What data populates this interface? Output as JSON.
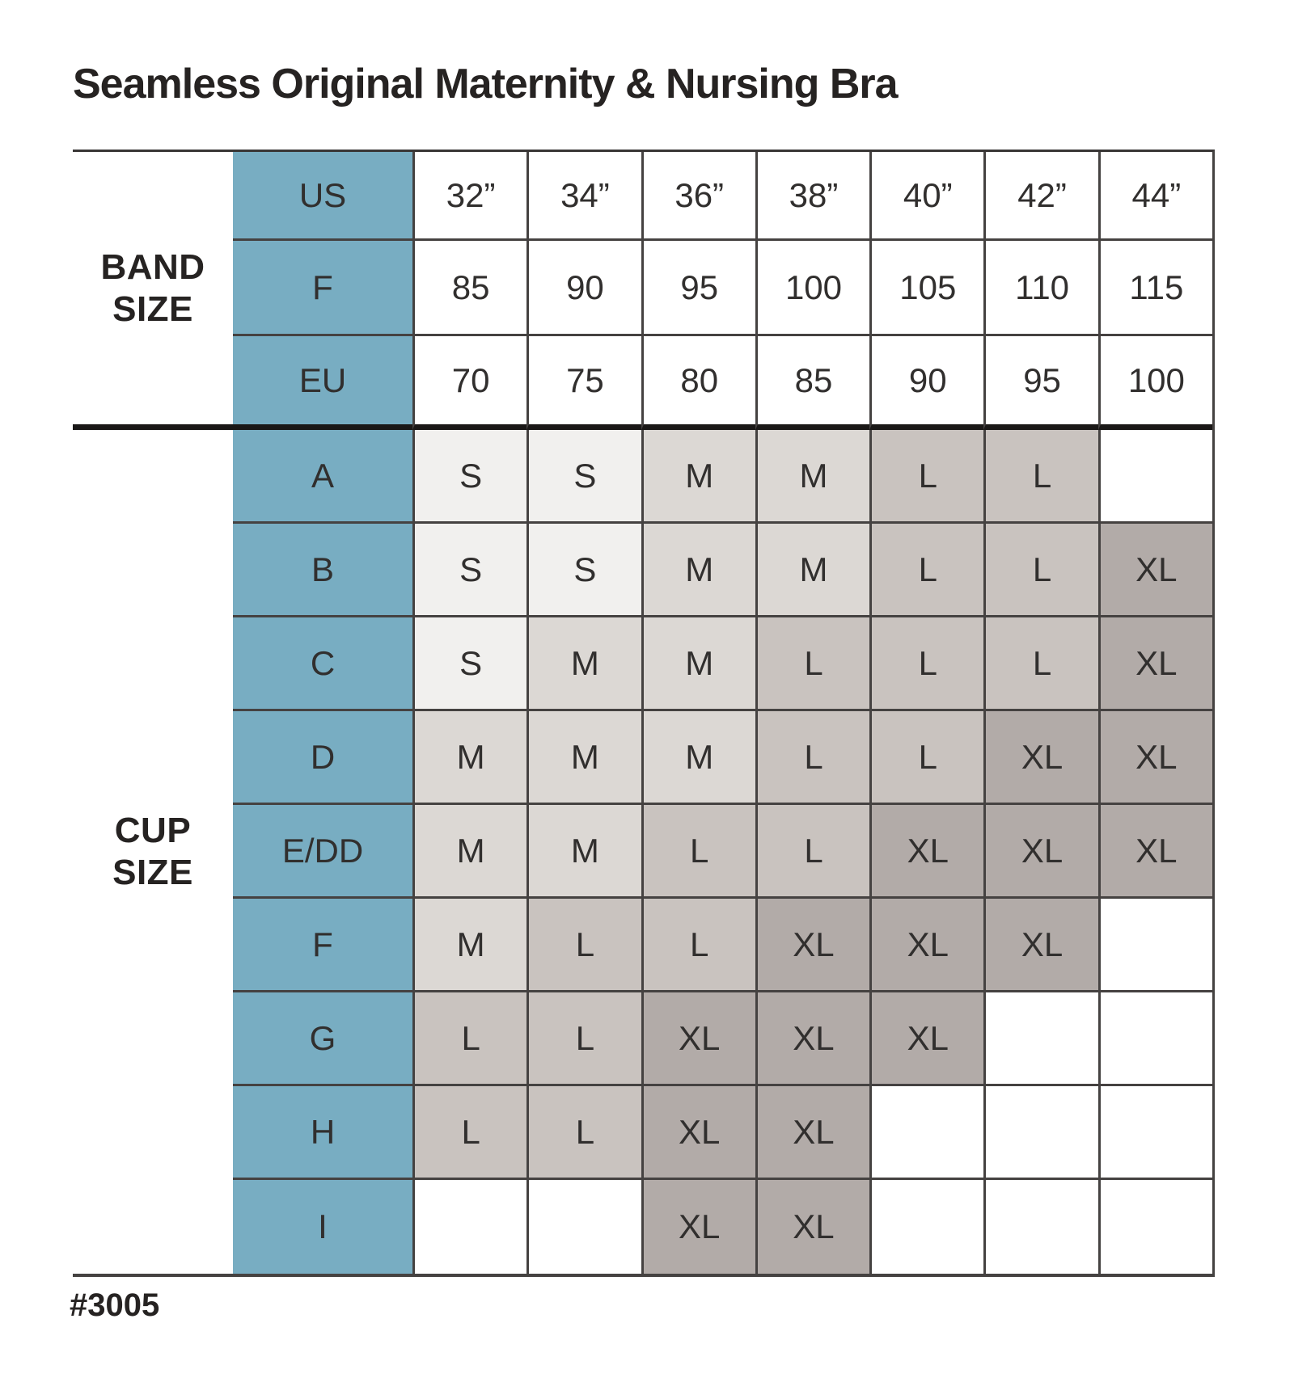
{
  "title": "Seamless Original Maternity & Nursing Bra",
  "footnote": "#3005",
  "table": {
    "band_section_label": "BAND\nSIZE",
    "cup_section_label": "CUP\nSIZE",
    "band_rows": [
      {
        "label": "US",
        "values": [
          "32”",
          "34”",
          "36”",
          "38”",
          "40”",
          "42”",
          "44”"
        ]
      },
      {
        "label": "F",
        "values": [
          "85",
          "90",
          "95",
          "100",
          "105",
          "110",
          "115"
        ]
      },
      {
        "label": "EU",
        "values": [
          "70",
          "75",
          "80",
          "85",
          "90",
          "95",
          "100"
        ]
      }
    ],
    "cup_rows": [
      {
        "label": "A",
        "values": [
          "S",
          "S",
          "M",
          "M",
          "L",
          "L",
          ""
        ]
      },
      {
        "label": "B",
        "values": [
          "S",
          "S",
          "M",
          "M",
          "L",
          "L",
          "XL"
        ]
      },
      {
        "label": "C",
        "values": [
          "S",
          "M",
          "M",
          "L",
          "L",
          "L",
          "XL"
        ]
      },
      {
        "label": "D",
        "values": [
          "M",
          "M",
          "M",
          "L",
          "L",
          "XL",
          "XL"
        ]
      },
      {
        "label": "E/DD",
        "values": [
          "M",
          "M",
          "L",
          "L",
          "XL",
          "XL",
          "XL"
        ]
      },
      {
        "label": "F",
        "values": [
          "M",
          "L",
          "L",
          "XL",
          "XL",
          "XL",
          ""
        ]
      },
      {
        "label": "G",
        "values": [
          "L",
          "L",
          "XL",
          "XL",
          "XL",
          "",
          ""
        ]
      },
      {
        "label": "H",
        "values": [
          "L",
          "L",
          "XL",
          "XL",
          "",
          "",
          ""
        ]
      },
      {
        "label": "I",
        "values": [
          "",
          "",
          "XL",
          "XL",
          "",
          "",
          ""
        ]
      }
    ],
    "accent_color": "#78adc2",
    "size_colors": {
      "S": "#f1f0ee",
      "M": "#dcd8d4",
      "L": "#c9c3bf",
      "XL": "#b2aba8"
    }
  }
}
